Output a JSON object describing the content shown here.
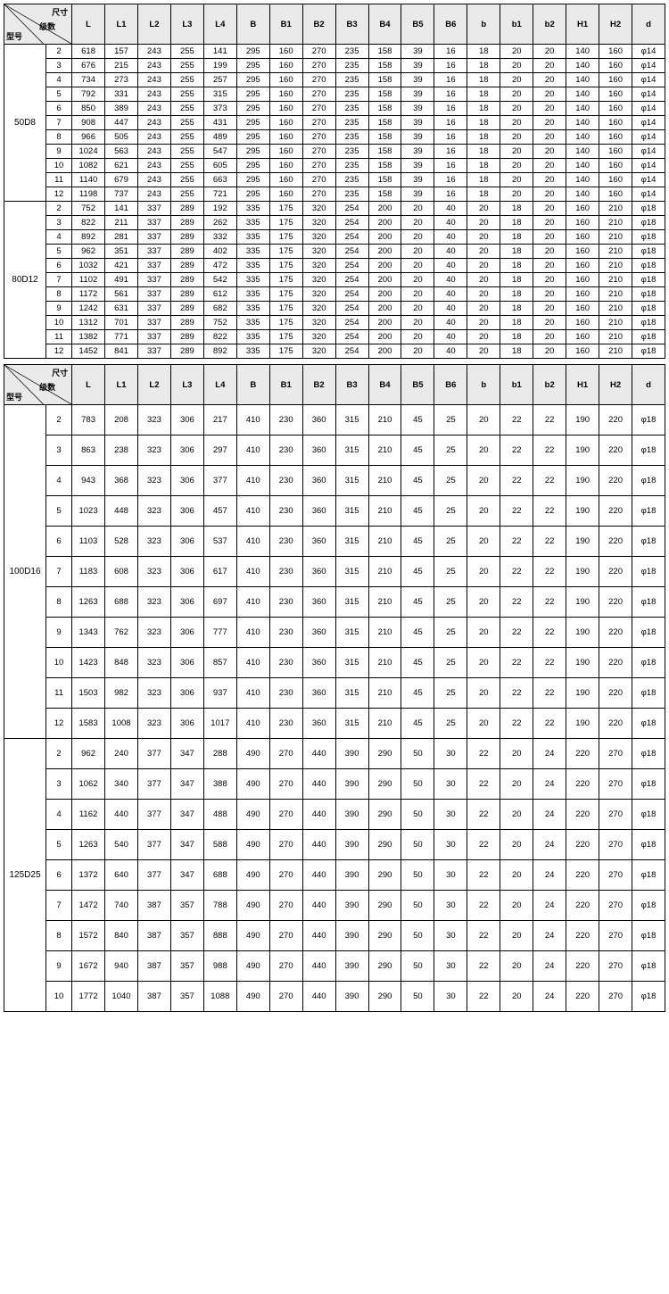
{
  "diag_labels": {
    "top": "尺寸",
    "mid": "级数",
    "bot": "型号"
  },
  "columns": [
    "L",
    "L1",
    "L2",
    "L3",
    "L4",
    "B",
    "B1",
    "B2",
    "B3",
    "B4",
    "B5",
    "B6",
    "b",
    "b1",
    "b2",
    "H1",
    "H2",
    "d"
  ],
  "table1": [
    {
      "model": "50D8",
      "rows": [
        [
          "2",
          "618",
          "157",
          "243",
          "255",
          "141",
          "295",
          "160",
          "270",
          "235",
          "158",
          "39",
          "16",
          "18",
          "20",
          "20",
          "140",
          "160",
          "φ14"
        ],
        [
          "3",
          "676",
          "215",
          "243",
          "255",
          "199",
          "295",
          "160",
          "270",
          "235",
          "158",
          "39",
          "16",
          "18",
          "20",
          "20",
          "140",
          "160",
          "φ14"
        ],
        [
          "4",
          "734",
          "273",
          "243",
          "255",
          "257",
          "295",
          "160",
          "270",
          "235",
          "158",
          "39",
          "16",
          "18",
          "20",
          "20",
          "140",
          "160",
          "φ14"
        ],
        [
          "5",
          "792",
          "331",
          "243",
          "255",
          "315",
          "295",
          "160",
          "270",
          "235",
          "158",
          "39",
          "16",
          "18",
          "20",
          "20",
          "140",
          "160",
          "φ14"
        ],
        [
          "6",
          "850",
          "389",
          "243",
          "255",
          "373",
          "295",
          "160",
          "270",
          "235",
          "158",
          "39",
          "16",
          "18",
          "20",
          "20",
          "140",
          "160",
          "φ14"
        ],
        [
          "7",
          "908",
          "447",
          "243",
          "255",
          "431",
          "295",
          "160",
          "270",
          "235",
          "158",
          "39",
          "16",
          "18",
          "20",
          "20",
          "140",
          "160",
          "φ14"
        ],
        [
          "8",
          "966",
          "505",
          "243",
          "255",
          "489",
          "295",
          "160",
          "270",
          "235",
          "158",
          "39",
          "16",
          "18",
          "20",
          "20",
          "140",
          "160",
          "φ14"
        ],
        [
          "9",
          "1024",
          "563",
          "243",
          "255",
          "547",
          "295",
          "160",
          "270",
          "235",
          "158",
          "39",
          "16",
          "18",
          "20",
          "20",
          "140",
          "160",
          "φ14"
        ],
        [
          "10",
          "1082",
          "621",
          "243",
          "255",
          "605",
          "295",
          "160",
          "270",
          "235",
          "158",
          "39",
          "16",
          "18",
          "20",
          "20",
          "140",
          "160",
          "φ14"
        ],
        [
          "11",
          "1140",
          "679",
          "243",
          "255",
          "663",
          "295",
          "160",
          "270",
          "235",
          "158",
          "39",
          "16",
          "18",
          "20",
          "20",
          "140",
          "160",
          "φ14"
        ],
        [
          "12",
          "1198",
          "737",
          "243",
          "255",
          "721",
          "295",
          "160",
          "270",
          "235",
          "158",
          "39",
          "16",
          "18",
          "20",
          "20",
          "140",
          "160",
          "φ14"
        ]
      ]
    },
    {
      "model": "80D12",
      "rows": [
        [
          "2",
          "752",
          "141",
          "337",
          "289",
          "192",
          "335",
          "175",
          "320",
          "254",
          "200",
          "20",
          "40",
          "20",
          "18",
          "20",
          "160",
          "210",
          "φ18"
        ],
        [
          "3",
          "822",
          "211",
          "337",
          "289",
          "262",
          "335",
          "175",
          "320",
          "254",
          "200",
          "20",
          "40",
          "20",
          "18",
          "20",
          "160",
          "210",
          "φ18"
        ],
        [
          "4",
          "892",
          "281",
          "337",
          "289",
          "332",
          "335",
          "175",
          "320",
          "254",
          "200",
          "20",
          "40",
          "20",
          "18",
          "20",
          "160",
          "210",
          "φ18"
        ],
        [
          "5",
          "962",
          "351",
          "337",
          "289",
          "402",
          "335",
          "175",
          "320",
          "254",
          "200",
          "20",
          "40",
          "20",
          "18",
          "20",
          "160",
          "210",
          "φ18"
        ],
        [
          "6",
          "1032",
          "421",
          "337",
          "289",
          "472",
          "335",
          "175",
          "320",
          "254",
          "200",
          "20",
          "40",
          "20",
          "18",
          "20",
          "160",
          "210",
          "φ18"
        ],
        [
          "7",
          "1102",
          "491",
          "337",
          "289",
          "542",
          "335",
          "175",
          "320",
          "254",
          "200",
          "20",
          "40",
          "20",
          "18",
          "20",
          "160",
          "210",
          "φ18"
        ],
        [
          "8",
          "1172",
          "561",
          "337",
          "289",
          "612",
          "335",
          "175",
          "320",
          "254",
          "200",
          "20",
          "40",
          "20",
          "18",
          "20",
          "160",
          "210",
          "φ18"
        ],
        [
          "9",
          "1242",
          "631",
          "337",
          "289",
          "682",
          "335",
          "175",
          "320",
          "254",
          "200",
          "20",
          "40",
          "20",
          "18",
          "20",
          "160",
          "210",
          "φ18"
        ],
        [
          "10",
          "1312",
          "701",
          "337",
          "289",
          "752",
          "335",
          "175",
          "320",
          "254",
          "200",
          "20",
          "40",
          "20",
          "18",
          "20",
          "160",
          "210",
          "φ18"
        ],
        [
          "11",
          "1382",
          "771",
          "337",
          "289",
          "822",
          "335",
          "175",
          "320",
          "254",
          "200",
          "20",
          "40",
          "20",
          "18",
          "20",
          "160",
          "210",
          "φ18"
        ],
        [
          "12",
          "1452",
          "841",
          "337",
          "289",
          "892",
          "335",
          "175",
          "320",
          "254",
          "200",
          "20",
          "40",
          "20",
          "18",
          "20",
          "160",
          "210",
          "φ18"
        ]
      ]
    }
  ],
  "table2": [
    {
      "model": "100D16",
      "rows": [
        [
          "2",
          "783",
          "208",
          "323",
          "306",
          "217",
          "410",
          "230",
          "360",
          "315",
          "210",
          "45",
          "25",
          "20",
          "22",
          "22",
          "190",
          "220",
          "φ18"
        ],
        [
          "3",
          "863",
          "238",
          "323",
          "306",
          "297",
          "410",
          "230",
          "360",
          "315",
          "210",
          "45",
          "25",
          "20",
          "22",
          "22",
          "190",
          "220",
          "φ18"
        ],
        [
          "4",
          "943",
          "368",
          "323",
          "306",
          "377",
          "410",
          "230",
          "360",
          "315",
          "210",
          "45",
          "25",
          "20",
          "22",
          "22",
          "190",
          "220",
          "φ18"
        ],
        [
          "5",
          "1023",
          "448",
          "323",
          "306",
          "457",
          "410",
          "230",
          "360",
          "315",
          "210",
          "45",
          "25",
          "20",
          "22",
          "22",
          "190",
          "220",
          "φ18"
        ],
        [
          "6",
          "1103",
          "528",
          "323",
          "306",
          "537",
          "410",
          "230",
          "360",
          "315",
          "210",
          "45",
          "25",
          "20",
          "22",
          "22",
          "190",
          "220",
          "φ18"
        ],
        [
          "7",
          "1183",
          "608",
          "323",
          "306",
          "617",
          "410",
          "230",
          "360",
          "315",
          "210",
          "45",
          "25",
          "20",
          "22",
          "22",
          "190",
          "220",
          "φ18"
        ],
        [
          "8",
          "1263",
          "688",
          "323",
          "306",
          "697",
          "410",
          "230",
          "360",
          "315",
          "210",
          "45",
          "25",
          "20",
          "22",
          "22",
          "190",
          "220",
          "φ18"
        ],
        [
          "9",
          "1343",
          "762",
          "323",
          "306",
          "777",
          "410",
          "230",
          "360",
          "315",
          "210",
          "45",
          "25",
          "20",
          "22",
          "22",
          "190",
          "220",
          "φ18"
        ],
        [
          "10",
          "1423",
          "848",
          "323",
          "306",
          "857",
          "410",
          "230",
          "360",
          "315",
          "210",
          "45",
          "25",
          "20",
          "22",
          "22",
          "190",
          "220",
          "φ18"
        ],
        [
          "11",
          "1503",
          "982",
          "323",
          "306",
          "937",
          "410",
          "230",
          "360",
          "315",
          "210",
          "45",
          "25",
          "20",
          "22",
          "22",
          "190",
          "220",
          "φ18"
        ],
        [
          "12",
          "1583",
          "1008",
          "323",
          "306",
          "1017",
          "410",
          "230",
          "360",
          "315",
          "210",
          "45",
          "25",
          "20",
          "22",
          "22",
          "190",
          "220",
          "φ18"
        ]
      ]
    },
    {
      "model": "125D25",
      "rows": [
        [
          "2",
          "962",
          "240",
          "377",
          "347",
          "288",
          "490",
          "270",
          "440",
          "390",
          "290",
          "50",
          "30",
          "22",
          "20",
          "24",
          "220",
          "270",
          "φ18"
        ],
        [
          "3",
          "1062",
          "340",
          "377",
          "347",
          "388",
          "490",
          "270",
          "440",
          "390",
          "290",
          "50",
          "30",
          "22",
          "20",
          "24",
          "220",
          "270",
          "φ18"
        ],
        [
          "4",
          "1162",
          "440",
          "377",
          "347",
          "488",
          "490",
          "270",
          "440",
          "390",
          "290",
          "50",
          "30",
          "22",
          "20",
          "24",
          "220",
          "270",
          "φ18"
        ],
        [
          "5",
          "1263",
          "540",
          "377",
          "347",
          "588",
          "490",
          "270",
          "440",
          "390",
          "290",
          "50",
          "30",
          "22",
          "20",
          "24",
          "220",
          "270",
          "φ18"
        ],
        [
          "6",
          "1372",
          "640",
          "377",
          "347",
          "688",
          "490",
          "270",
          "440",
          "390",
          "290",
          "50",
          "30",
          "22",
          "20",
          "24",
          "220",
          "270",
          "φ18"
        ],
        [
          "7",
          "1472",
          "740",
          "387",
          "357",
          "788",
          "490",
          "270",
          "440",
          "390",
          "290",
          "50",
          "30",
          "22",
          "20",
          "24",
          "220",
          "270",
          "φ18"
        ],
        [
          "8",
          "1572",
          "840",
          "387",
          "357",
          "888",
          "490",
          "270",
          "440",
          "390",
          "290",
          "50",
          "30",
          "22",
          "20",
          "24",
          "220",
          "270",
          "φ18"
        ],
        [
          "9",
          "1672",
          "940",
          "387",
          "357",
          "988",
          "490",
          "270",
          "440",
          "390",
          "290",
          "50",
          "30",
          "22",
          "20",
          "24",
          "220",
          "270",
          "φ18"
        ],
        [
          "10",
          "1772",
          "1040",
          "387",
          "357",
          "1088",
          "490",
          "270",
          "440",
          "390",
          "290",
          "50",
          "30",
          "22",
          "20",
          "24",
          "220",
          "270",
          "φ18"
        ]
      ]
    }
  ]
}
